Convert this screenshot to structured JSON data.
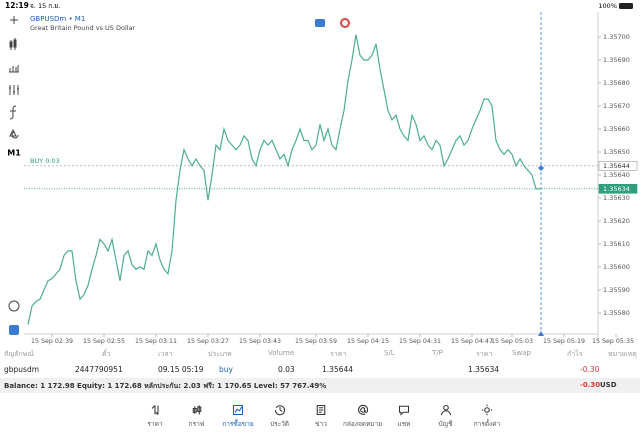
{
  "status_bar": {
    "time": "12:19",
    "date": "จ. 15 ก.ย.",
    "battery": "100%"
  },
  "toolbar": {
    "timeframe": "M1"
  },
  "chart_data": {
    "type": "line",
    "title": "GBPUSDm • M1",
    "subtitle": "Great Britain Pound vs US Dollar",
    "color": "#4cae8c",
    "grid": false,
    "ylim": [
      1.3557,
      1.3571
    ],
    "yticks": [
      {
        "value": 1.357,
        "label": "1.35700"
      },
      {
        "value": 1.3569,
        "label": "1.35690"
      },
      {
        "value": 1.3568,
        "label": "1.35680"
      },
      {
        "value": 1.3567,
        "label": "1.35670"
      },
      {
        "value": 1.3566,
        "label": "1.35660"
      },
      {
        "value": 1.3565,
        "label": "1.35650"
      },
      {
        "value": 1.3564,
        "label": "1.35640"
      },
      {
        "value": 1.3563,
        "label": "1.35630"
      },
      {
        "value": 1.3562,
        "label": "1.35620"
      },
      {
        "value": 1.3561,
        "label": "1.35610"
      },
      {
        "value": 1.356,
        "label": "1.35600"
      },
      {
        "value": 1.3559,
        "label": "1.35590"
      },
      {
        "value": 1.3558,
        "label": "1.35580"
      }
    ],
    "categories": [
      null,
      null,
      null,
      null,
      null,
      null,
      "15 Sep 02:39",
      null,
      null,
      null,
      null,
      null,
      null,
      null,
      null,
      null,
      null,
      null,
      null,
      "15 Sep 02:55",
      null,
      null,
      null,
      null,
      null,
      null,
      null,
      null,
      null,
      null,
      null,
      null,
      "15 Sep 03:11",
      null,
      null,
      null,
      null,
      null,
      null,
      null,
      null,
      null,
      null,
      null,
      null,
      "15 Sep 03:27",
      null,
      null,
      null,
      null,
      null,
      null,
      null,
      null,
      null,
      null,
      null,
      null,
      "15 Sep 03:43",
      null,
      null,
      null,
      null,
      null,
      null,
      null,
      null,
      null,
      null,
      null,
      null,
      null,
      "15 Sep 03:59",
      null,
      null,
      null,
      null,
      null,
      null,
      null,
      null,
      null,
      null,
      null,
      null,
      "15 Sep 04:15",
      null,
      null,
      null,
      null,
      null,
      null,
      null,
      null,
      null,
      null,
      null,
      null,
      "15 Sep 04:31",
      null,
      null,
      null,
      null,
      null,
      null,
      null,
      null,
      null,
      null,
      null,
      null,
      "15 Sep 04:47",
      null,
      null,
      null,
      null,
      null,
      null,
      null,
      null,
      null,
      "15 Sep 05:03",
      null,
      null,
      null,
      null,
      null,
      null,
      null,
      null,
      null,
      null,
      null,
      null,
      "15 Sep 05:19",
      null,
      null,
      null,
      null,
      null,
      null,
      null,
      null,
      null,
      null,
      null,
      null,
      "15 Sep 05:35"
    ],
    "values": [
      1.35575,
      1.35583,
      1.35585,
      1.35586,
      1.3559,
      1.35594,
      1.35595,
      1.35597,
      1.35599,
      1.35605,
      1.35607,
      1.35607,
      1.35594,
      1.35586,
      1.35588,
      1.35592,
      1.35599,
      1.35605,
      1.35612,
      1.3561,
      1.35607,
      1.35612,
      1.35603,
      1.35594,
      1.35605,
      1.35607,
      1.35601,
      1.35599,
      1.356,
      1.35599,
      1.35607,
      1.35605,
      1.3561,
      1.35603,
      1.35599,
      1.35597,
      1.35607,
      1.35629,
      1.35642,
      1.35651,
      1.35647,
      1.35644,
      1.35647,
      1.35644,
      1.35642,
      1.35629,
      1.3564,
      1.35653,
      1.35651,
      1.3566,
      1.35655,
      1.35653,
      1.35651,
      1.35653,
      1.35657,
      1.35655,
      1.35647,
      1.35644,
      1.35651,
      1.35655,
      1.35653,
      1.35655,
      1.35651,
      1.35647,
      1.35649,
      1.35644,
      1.35651,
      1.35655,
      1.3566,
      1.35655,
      1.35655,
      1.35651,
      1.35653,
      1.35662,
      1.35655,
      1.3566,
      1.35653,
      1.35651,
      1.3566,
      1.35668,
      1.35681,
      1.3569,
      1.35701,
      1.35692,
      1.3569,
      1.3569,
      1.35692,
      1.35697,
      1.35686,
      1.35677,
      1.35668,
      1.35664,
      1.35666,
      1.3566,
      1.35657,
      1.35655,
      1.35666,
      1.35662,
      1.35655,
      1.35657,
      1.35653,
      1.35651,
      1.35655,
      1.35653,
      1.35644,
      1.35647,
      1.35651,
      1.35655,
      1.35657,
      1.35653,
      1.35655,
      1.3566,
      1.35664,
      1.35668,
      1.35673,
      1.35673,
      1.3567,
      1.35655,
      1.35651,
      1.35649,
      1.35651,
      1.35649,
      1.35644,
      1.35647,
      1.35644,
      1.35642,
      1.3564,
      1.35634,
      1.35634,
      null,
      null,
      null,
      null,
      null,
      null,
      null,
      null,
      null,
      null,
      null,
      null,
      null,
      null,
      null,
      null,
      null,
      null,
      null
    ],
    "annotations": [
      {
        "label": "BUY 0.03",
        "value": 1.35644
      }
    ],
    "price_tags": [
      {
        "value": 1.35644,
        "color": "#ffffff"
      },
      {
        "value": 1.35634,
        "color": "#2e9e7c"
      }
    ]
  },
  "positions": {
    "columns": [
      "สัญลักษณ์",
      "ตั๋ว",
      "เวลา",
      "ประเภท",
      "Volume",
      "ราคา",
      "S/L",
      "T/P",
      "ราคา",
      "Swap",
      "กำไร",
      "หมายเหตุ"
    ],
    "rows": [
      {
        "symbol": "gbpusdm",
        "ticket": "2447790951",
        "time": "09.15 05:19",
        "type": "buy",
        "volume": "0.03",
        "open_price": "1.35644",
        "price": "1.35634",
        "profit": "-0.30"
      }
    ]
  },
  "account": {
    "summary": "Balance: 1 172.98 Equity: 1 172.68 หลักประกัน: 2.03 ฟรี: 1 170.65 Level: 57 767.49%",
    "profit": "-0.30",
    "currency": "USD"
  },
  "nav": [
    "ราคา",
    "กราฟ",
    "การซื้อขาย",
    "ประวัติ",
    "ข่าว",
    "กล่องจดหมาย",
    "แชท",
    "บัญชี",
    "การตั้งค่า"
  ]
}
